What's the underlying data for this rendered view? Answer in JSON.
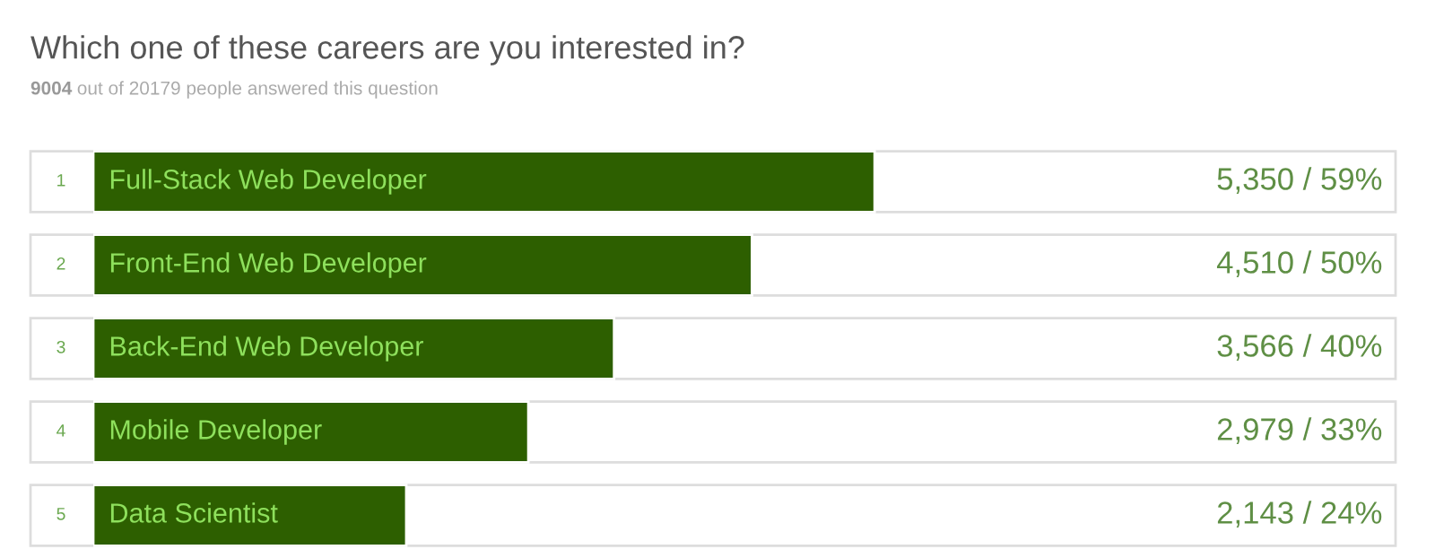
{
  "chart_data": {
    "type": "bar",
    "orientation": "horizontal",
    "title": "Which one of these careers are you interested in?",
    "subtitle": "9004 out of 20179 people answered this question",
    "categories": [
      "Full-Stack Web Developer",
      "Front-End Web Developer",
      "Back-End Web Developer",
      "Mobile Developer",
      "Data Scientist"
    ],
    "values": [
      5350,
      4510,
      3566,
      2979,
      2143
    ],
    "value_labels": [
      "5,350 / 59%",
      "4,510 / 50%",
      "3,566 / 40%",
      "2,979 / 33%",
      "2,143 / 24%"
    ],
    "annotations": [
      "1",
      "2",
      "3",
      "4",
      "5"
    ],
    "color": "#2d5f00"
  }
}
